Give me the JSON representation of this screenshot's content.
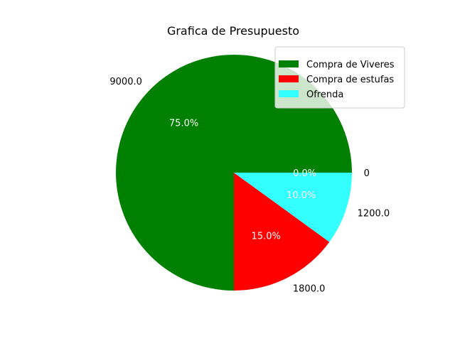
{
  "chart_data": {
    "type": "pie",
    "title": "Grafica de Presupuesto",
    "slices": [
      {
        "name": "Compra de Viveres",
        "value": 9000.0,
        "label": "9000.0",
        "pct": "75.0%",
        "color": "#008000"
      },
      {
        "name": "Compra de estufas",
        "value": 1800.0,
        "label": "1800.0",
        "pct": "15.0%",
        "color": "#ff0000"
      },
      {
        "name": "Ofrenda",
        "value": 1200.0,
        "label": "1200.0",
        "pct": "10.0%",
        "color": "#33ffff"
      },
      {
        "name": "",
        "value": 0,
        "label": "0",
        "pct": "0.0%",
        "color": "#008000"
      }
    ],
    "start_angle_deg": 0,
    "direction": "counterclockwise",
    "legend": {
      "placement": "top-right",
      "entries": [
        {
          "label": "Compra de Viveres",
          "color": "#008000"
        },
        {
          "label": "Compra de estufas",
          "color": "#ff0000"
        },
        {
          "label": "Ofrenda",
          "color": "#33ffff"
        }
      ]
    }
  }
}
